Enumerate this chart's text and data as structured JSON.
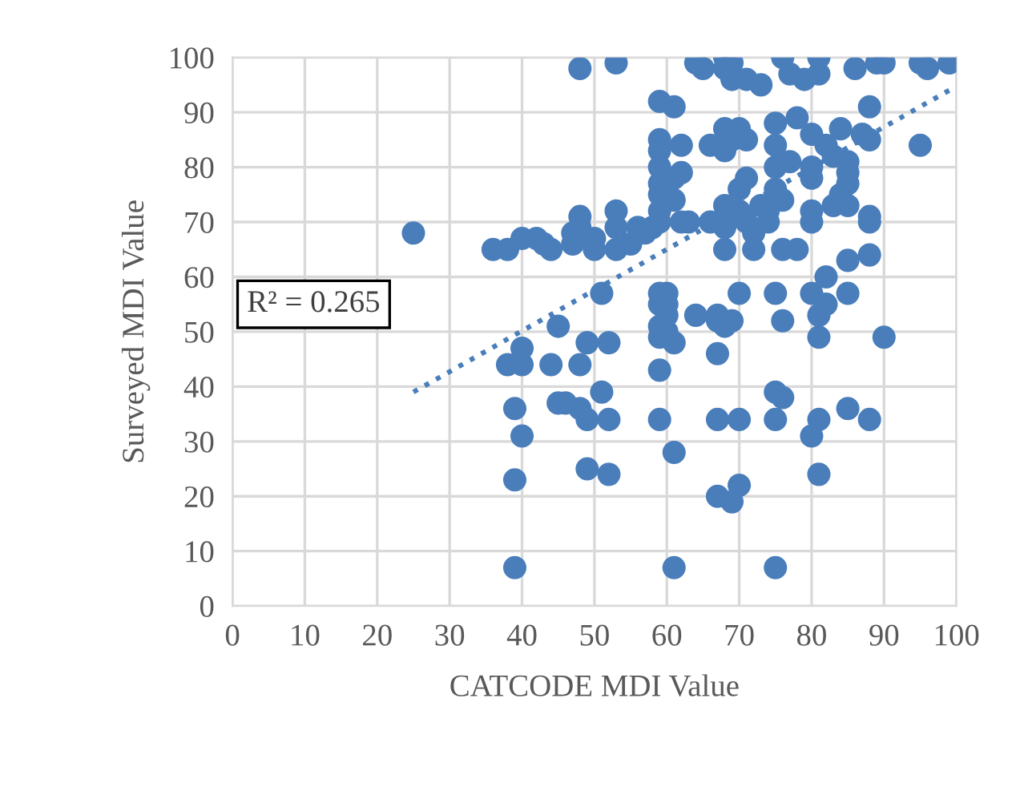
{
  "chart_data": {
    "type": "scatter",
    "xlabel": "CATCODE MDI Value",
    "ylabel": "Surveyed MDI Value",
    "xlim": [
      0,
      100
    ],
    "ylim": [
      0,
      100
    ],
    "xticks": [
      0,
      10,
      20,
      30,
      40,
      50,
      60,
      70,
      80,
      90,
      100
    ],
    "yticks": [
      0,
      10,
      20,
      30,
      40,
      50,
      60,
      70,
      80,
      90,
      100
    ],
    "grid": true,
    "legend": false,
    "marker": "circle",
    "annotations": [
      "R² = 0.265"
    ],
    "series": [
      {
        "color": "#4a7ebb",
        "x": [
          25,
          36,
          38,
          38,
          39,
          39,
          39,
          40,
          40,
          40,
          40,
          42,
          43,
          44,
          44,
          45,
          45,
          46,
          47,
          47,
          48,
          48,
          48,
          48,
          48,
          49,
          49,
          49,
          50,
          50,
          51,
          51,
          52,
          52,
          52,
          53,
          53,
          53,
          53,
          55,
          56,
          57,
          58,
          59,
          59,
          59,
          59,
          59,
          59,
          59,
          59,
          59,
          59,
          59,
          59,
          59,
          59,
          60,
          60,
          60,
          60,
          61,
          61,
          61,
          61,
          61,
          61,
          62,
          62,
          62,
          63,
          64,
          64,
          65,
          66,
          66,
          67,
          67,
          67,
          67,
          67,
          68,
          68,
          68,
          68,
          68,
          68,
          68,
          68,
          69,
          69,
          69,
          69,
          69,
          70,
          70,
          70,
          70,
          70,
          70,
          71,
          71,
          71,
          71,
          72,
          72,
          73,
          73,
          74,
          74,
          75,
          75,
          75,
          75,
          75,
          75,
          75,
          75,
          76,
          76,
          76,
          76,
          76,
          77,
          77,
          78,
          78,
          79,
          80,
          80,
          80,
          80,
          80,
          80,
          80,
          81,
          81,
          81,
          81,
          81,
          81,
          82,
          82,
          82,
          83,
          83,
          84,
          84,
          85,
          85,
          85,
          85,
          85,
          85,
          85,
          86,
          87,
          88,
          88,
          88,
          88,
          88,
          88,
          89,
          90,
          90,
          95,
          95,
          96,
          99
        ],
        "values": [
          68,
          65,
          65,
          44,
          36,
          23,
          7,
          47,
          44,
          31,
          67,
          67,
          66,
          65,
          44,
          51,
          37,
          37,
          68,
          66,
          71,
          69,
          98,
          44,
          36,
          34,
          25,
          48,
          65,
          67,
          39,
          57,
          48,
          34,
          24,
          99,
          72,
          65,
          69,
          66,
          69,
          68,
          69,
          92,
          85,
          83,
          80,
          77,
          75,
          72,
          70,
          57,
          55,
          51,
          49,
          43,
          34,
          57,
          55,
          53,
          50,
          91,
          78,
          74,
          48,
          28,
          7,
          84,
          79,
          70,
          70,
          99,
          53,
          98,
          84,
          70,
          53,
          52,
          46,
          34,
          20,
          100,
          98,
          87,
          83,
          73,
          69,
          65,
          51,
          99,
          96,
          85,
          52,
          19,
          87,
          76,
          72,
          57,
          34,
          22,
          96,
          85,
          78,
          70,
          68,
          65,
          95,
          73,
          72,
          70,
          88,
          84,
          80,
          76,
          57,
          39,
          34,
          7,
          100,
          74,
          65,
          52,
          38,
          97,
          81,
          89,
          65,
          96,
          86,
          80,
          78,
          72,
          70,
          57,
          31,
          100,
          97,
          53,
          49,
          34,
          24,
          84,
          60,
          55,
          82,
          73,
          87,
          75,
          81,
          79,
          77,
          73,
          63,
          57,
          36,
          98,
          86,
          91,
          85,
          71,
          70,
          64,
          34,
          99,
          99,
          49,
          99,
          84,
          98,
          99
        ]
      },
      {
        "type": "line",
        "color": "#4a7ebb",
        "line_style": "dotted",
        "marker": "none",
        "x": [
          25,
          99
        ],
        "values": [
          39,
          94
        ]
      }
    ]
  }
}
